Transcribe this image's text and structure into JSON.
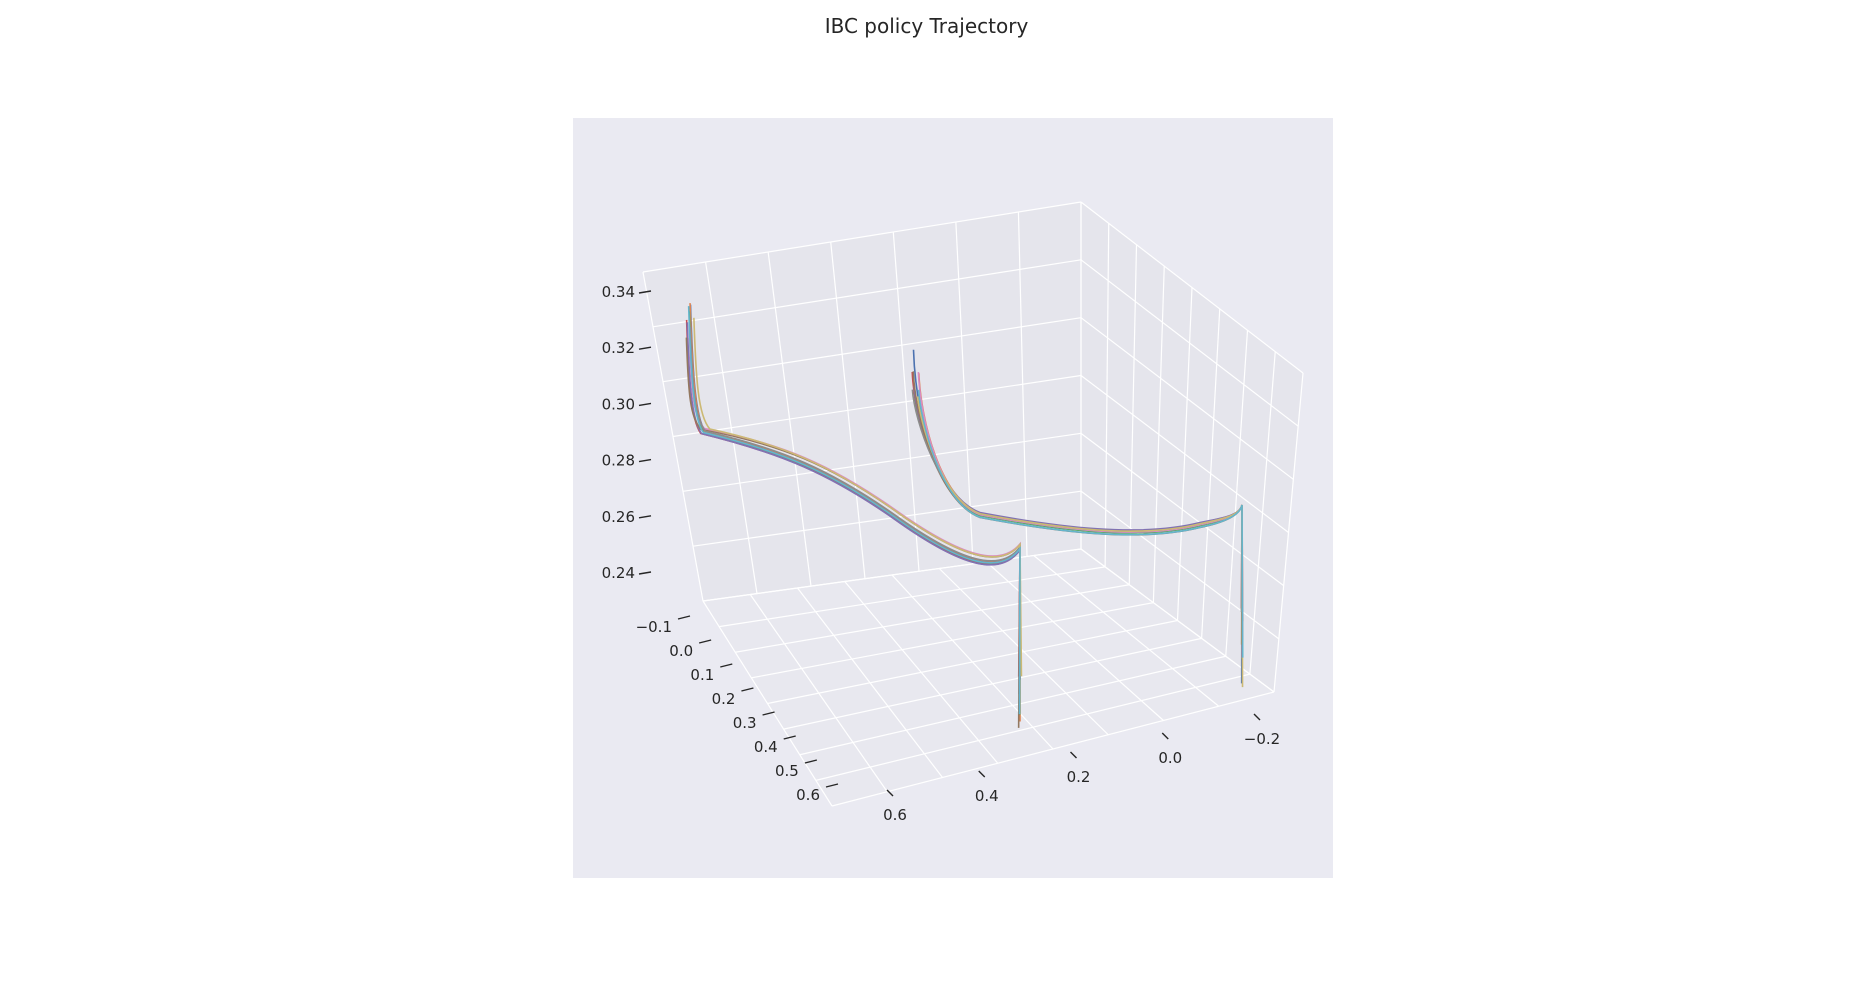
{
  "chart_data": {
    "type": "line3d",
    "title": "IBC policy Trajectory",
    "xlabel": "",
    "ylabel": "",
    "zlabel": "",
    "grid": true,
    "colors": {
      "axes_background": "#EAEAF2",
      "pane": "#E5E5EC",
      "grid": "#FFFFFF",
      "text": "#262626"
    },
    "x_ticks": [
      "−0.1",
      "0.0",
      "0.1",
      "0.2",
      "0.3",
      "0.4",
      "0.5",
      "0.6"
    ],
    "y_ticks": [
      "0.6",
      "0.4",
      "0.2",
      "0.0",
      "−0.2"
    ],
    "z_ticks": [
      "0.24",
      "0.26",
      "0.28",
      "0.30",
      "0.32",
      "0.34"
    ],
    "series_colors": [
      "#4C72B0",
      "#DD8452",
      "#55A868",
      "#C44E52",
      "#8172B3",
      "#937860",
      "#DA8BC3",
      "#8C8C8C",
      "#CCB974",
      "#64B5CD"
    ],
    "series_count": 20
  }
}
